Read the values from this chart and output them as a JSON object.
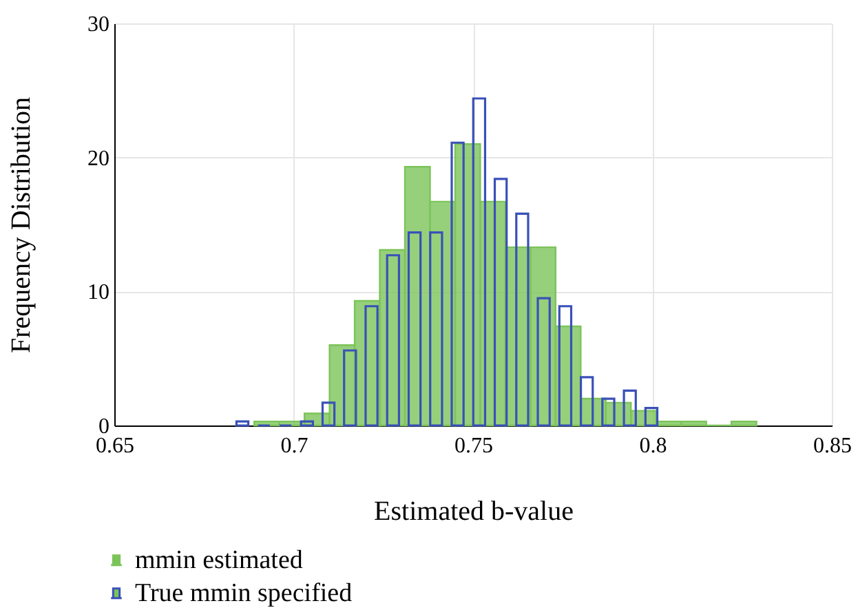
{
  "chart_data": {
    "type": "bar",
    "xlabel": "Estimated b-value",
    "ylabel": "Frequency Distribution",
    "xlim": [
      0.65,
      0.85
    ],
    "xticks": [
      0.65,
      0.7,
      0.75,
      0.8,
      0.85
    ],
    "ylim": [
      0,
      30
    ],
    "yticks": [
      0,
      10,
      20,
      30
    ],
    "grid": true,
    "legend": "bottom left",
    "series": [
      {
        "name": "mmin estimated",
        "color": "#7cc45a",
        "x": [
          0.6925,
          0.6995,
          0.7065,
          0.7135,
          0.7205,
          0.7275,
          0.7345,
          0.7415,
          0.7485,
          0.7555,
          0.7625,
          0.7695,
          0.7765,
          0.7835,
          0.7905,
          0.7975,
          0.8045,
          0.8115,
          0.8185,
          0.8255
        ],
        "values": [
          0.3,
          0.3,
          0.9,
          6.0,
          9.3,
          13.1,
          19.3,
          16.7,
          21.0,
          16.7,
          13.3,
          13.3,
          7.4,
          2.0,
          1.7,
          1.1,
          0.3,
          0.3,
          0,
          0.3
        ]
      },
      {
        "name": "True mmin specified",
        "color": "#3a50b8",
        "x": [
          0.6857,
          0.6917,
          0.6977,
          0.7037,
          0.7097,
          0.7157,
          0.7217,
          0.7277,
          0.7337,
          0.7397,
          0.7457,
          0.7517,
          0.7577,
          0.7637,
          0.7697,
          0.7757,
          0.7817,
          0.7877,
          0.7937,
          0.7997
        ],
        "values": [
          0.3,
          0,
          0,
          0.3,
          1.7,
          5.6,
          8.9,
          12.7,
          14.4,
          14.4,
          21.1,
          24.4,
          18.4,
          15.8,
          9.5,
          8.9,
          3.6,
          2.0,
          2.6,
          1.3
        ]
      }
    ]
  }
}
